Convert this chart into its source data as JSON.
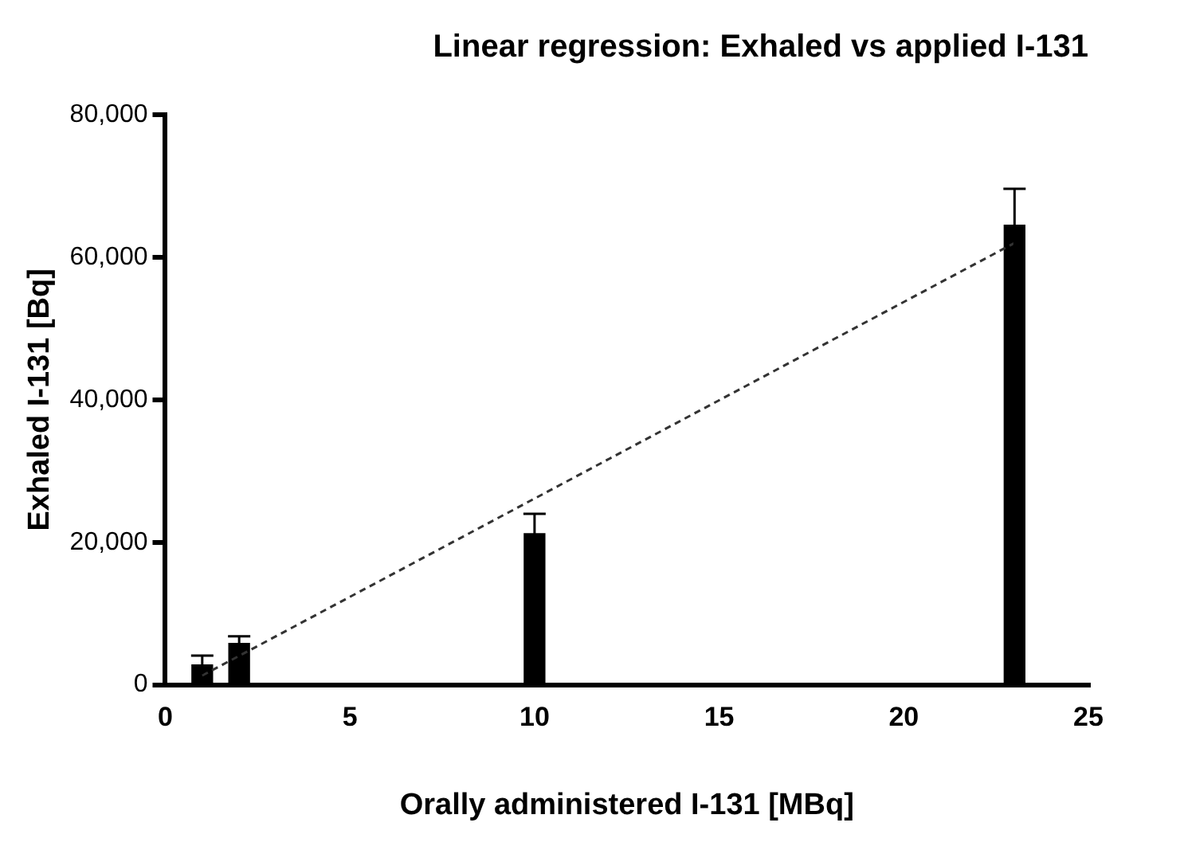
{
  "chart_data": {
    "type": "bar",
    "title": "Linear regression: Exhaled vs applied I-131",
    "xlabel": "Orally administered I-131 [MBq]",
    "ylabel": "Exhaled I-131 [Bq]",
    "series": [
      {
        "color": "#000000",
        "x": [
          1,
          2,
          10,
          23
        ],
        "values": [
          2800,
          5800,
          21200,
          64500
        ],
        "errors": [
          1300,
          1000,
          2800,
          5100
        ]
      },
      {
        "type": "line",
        "color": "#333333",
        "x": [
          1,
          23
        ],
        "values": [
          1300,
          62000
        ],
        "line_style": "dashed",
        "marker": "none"
      }
    ],
    "xlim": [
      0,
      25
    ],
    "xticks": [
      0,
      5,
      10,
      15,
      20,
      25
    ],
    "ylim": [
      0,
      80000
    ],
    "yticks": [
      0,
      {
        "value": 20000,
        "label": "20,000"
      },
      {
        "value": 40000,
        "label": "40,000"
      },
      {
        "value": 60000,
        "label": "60,000"
      },
      {
        "value": 80000,
        "label": "80,000"
      }
    ],
    "grid": false,
    "legend": false
  }
}
